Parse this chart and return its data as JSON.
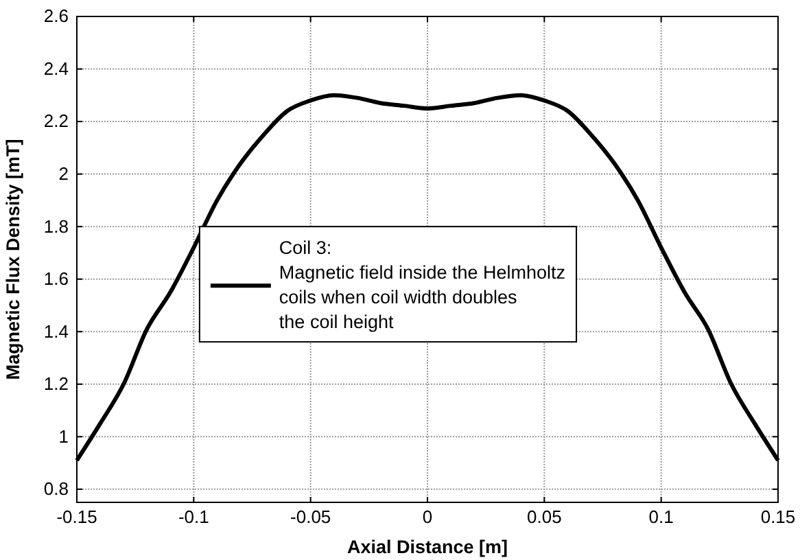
{
  "chart_data": {
    "type": "line",
    "xlabel": "Axial Distance [m]",
    "ylabel": "Magnetic Flux Density [mT]",
    "x": [
      -0.15,
      -0.14,
      -0.13,
      -0.12,
      -0.11,
      -0.1,
      -0.09,
      -0.08,
      -0.07,
      -0.06,
      -0.05,
      -0.04,
      -0.03,
      -0.02,
      -0.01,
      0,
      0.01,
      0.02,
      0.03,
      0.04,
      0.05,
      0.06,
      0.07,
      0.08,
      0.09,
      0.1,
      0.11,
      0.12,
      0.13,
      0.14,
      0.15
    ],
    "series": [
      {
        "name": "Coil 3:\nMagnetic field inside the Helmholtz\ncoils when coil width doubles\nthe coil height",
        "color": "#000000",
        "values": [
          0.91,
          1.05,
          1.2,
          1.41,
          1.55,
          1.72,
          1.9,
          2.04,
          2.15,
          2.24,
          2.28,
          2.3,
          2.29,
          2.27,
          2.26,
          2.25,
          2.26,
          2.27,
          2.29,
          2.3,
          2.28,
          2.24,
          2.15,
          2.04,
          1.9,
          1.72,
          1.55,
          1.41,
          1.2,
          1.05,
          0.91
        ]
      }
    ],
    "xlim": [
      -0.15,
      0.15
    ],
    "xticks": [
      -0.15,
      -0.1,
      -0.05,
      0,
      0.05,
      0.1,
      0.15
    ],
    "ylim": [
      0.75,
      2.6
    ],
    "yticks": [
      0.8,
      1,
      1.2,
      1.4,
      1.6,
      1.8,
      2,
      2.2,
      2.4,
      2.6
    ],
    "grid": true,
    "legend": "center",
    "marker": "none",
    "line_style": "solid"
  }
}
